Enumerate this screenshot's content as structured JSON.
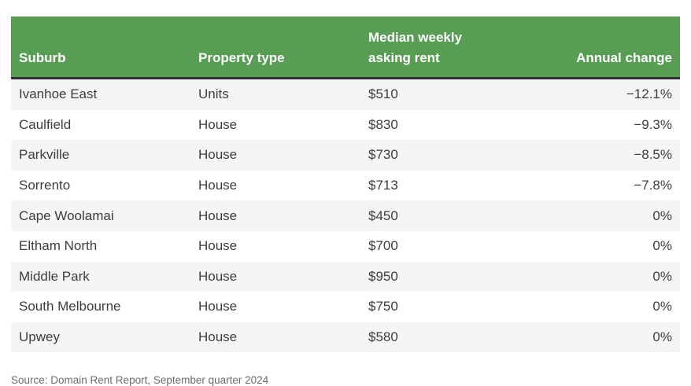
{
  "chart_data": {
    "type": "table",
    "columns": [
      {
        "label": "Suburb",
        "align": "left"
      },
      {
        "label": "Property type",
        "align": "left"
      },
      {
        "label": "Median weekly\nasking rent",
        "align": "left"
      },
      {
        "label": "Annual change",
        "align": "right"
      }
    ],
    "rows": [
      {
        "suburb": "Ivanhoe East",
        "property_type": "Units",
        "median_weekly_asking_rent": "$510",
        "annual_change": "−12.1%"
      },
      {
        "suburb": "Caulfield",
        "property_type": "House",
        "median_weekly_asking_rent": "$830",
        "annual_change": "−9.3%"
      },
      {
        "suburb": "Parkville",
        "property_type": "House",
        "median_weekly_asking_rent": "$730",
        "annual_change": "−8.5%"
      },
      {
        "suburb": "Sorrento",
        "property_type": "House",
        "median_weekly_asking_rent": "$713",
        "annual_change": "−7.8%"
      },
      {
        "suburb": "Cape Woolamai",
        "property_type": "House",
        "median_weekly_asking_rent": "$450",
        "annual_change": "0%"
      },
      {
        "suburb": "Eltham North",
        "property_type": "House",
        "median_weekly_asking_rent": "$700",
        "annual_change": "0%"
      },
      {
        "suburb": "Middle Park",
        "property_type": "House",
        "median_weekly_asking_rent": "$950",
        "annual_change": "0%"
      },
      {
        "suburb": "South Melbourne",
        "property_type": "House",
        "median_weekly_asking_rent": "$750",
        "annual_change": "0%"
      },
      {
        "suburb": "Upwey",
        "property_type": "House",
        "median_weekly_asking_rent": "$580",
        "annual_change": "0%"
      }
    ],
    "source": "Source: Domain Rent Report, September quarter 2024"
  },
  "colors": {
    "header_bg": "#579d53",
    "header_text": "#ffffff",
    "header_border": "#2e2e2e",
    "zebra_row": "#f5f5f5",
    "body_text": "#3d3d3d",
    "source_text": "#6b6b6b"
  }
}
